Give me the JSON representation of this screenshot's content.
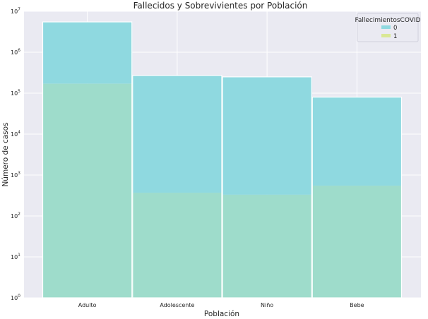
{
  "chart_data": {
    "type": "bar",
    "title": "Fallecidos y Sobrevivientes por Población",
    "xlabel": "Población",
    "ylabel": "Número de casos",
    "categories": [
      "Adulto",
      "Adolescente",
      "Niño",
      "Bebe"
    ],
    "y_scale": "log",
    "ylim": [
      1,
      10000000
    ],
    "y_ticks": [
      {
        "base": "10",
        "exp": "0",
        "value": 1
      },
      {
        "base": "10",
        "exp": "1",
        "value": 10
      },
      {
        "base": "10",
        "exp": "2",
        "value": 100
      },
      {
        "base": "10",
        "exp": "3",
        "value": 1000
      },
      {
        "base": "10",
        "exp": "4",
        "value": 10000
      },
      {
        "base": "10",
        "exp": "5",
        "value": 100000
      },
      {
        "base": "10",
        "exp": "6",
        "value": 1000000
      },
      {
        "base": "10",
        "exp": "7",
        "value": 10000000
      }
    ],
    "series": [
      {
        "name": "0",
        "color": "#8fd9e0",
        "values": [
          5500000,
          270000,
          250000,
          80000
        ]
      },
      {
        "name": "1",
        "color": "#d9e895",
        "values": [
          170000,
          370,
          330,
          550
        ]
      }
    ],
    "overlap_color": "#9edccb",
    "grid": true,
    "legend": {
      "title": "FallecimientosCOVID",
      "placement": "top-right"
    },
    "colors": {
      "background": "#eaeaf2",
      "grid": "#ffffff",
      "bar_edge": "#ffffff"
    }
  }
}
